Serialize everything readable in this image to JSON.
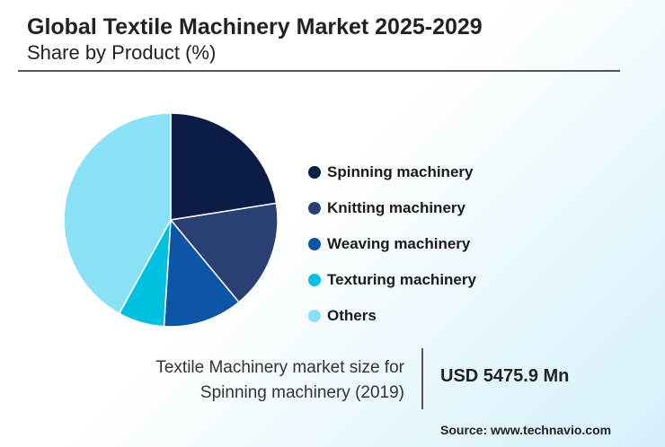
{
  "header": {
    "title": "Global Textile Machinery Market 2025-2029",
    "subtitle": "Share by Product (%)"
  },
  "chart_data": {
    "type": "pie",
    "categories": [
      "Spinning machinery",
      "Knitting machinery",
      "Weaving machinery",
      "Texturing machinery",
      "Others"
    ],
    "values": [
      22.5,
      16.5,
      12,
      7,
      42
    ],
    "colors": [
      "#0b1d47",
      "#2a3f73",
      "#0d56a6",
      "#00c0e0",
      "#8ae0f4"
    ],
    "legend_position": "right"
  },
  "info": {
    "description_line1": "Textile Machinery market size for",
    "description_line2": "Spinning machinery (2019)",
    "value": "USD 5475.9 Mn"
  },
  "source": "Source: www.technavio.com"
}
